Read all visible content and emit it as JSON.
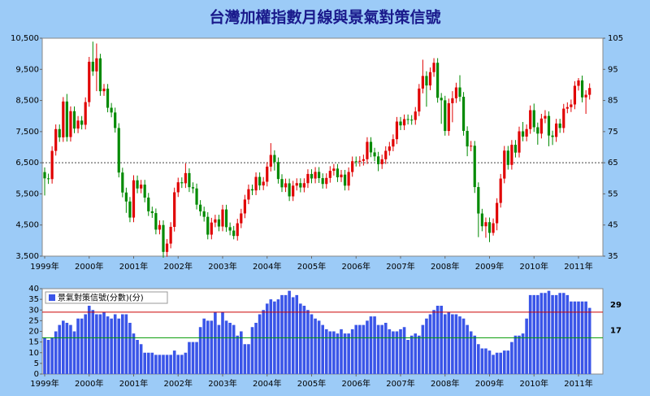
{
  "chart_data": [
    {
      "type": "candlestick",
      "title": "台灣加權指數月線與景氣對策信號",
      "categories": [
        "1999年",
        null,
        null,
        null,
        null,
        null,
        null,
        null,
        null,
        null,
        null,
        null,
        "2000年",
        null,
        null,
        null,
        null,
        null,
        null,
        null,
        null,
        null,
        null,
        null,
        "2001年",
        null,
        null,
        null,
        null,
        null,
        null,
        null,
        null,
        null,
        null,
        null,
        "2002年",
        null,
        null,
        null,
        null,
        null,
        null,
        null,
        null,
        null,
        null,
        null,
        "2003年",
        null,
        null,
        null,
        null,
        null,
        null,
        null,
        null,
        null,
        null,
        null,
        "2004年",
        null,
        null,
        null,
        null,
        null,
        null,
        null,
        null,
        null,
        null,
        null,
        "2005年",
        null,
        null,
        null,
        null,
        null,
        null,
        null,
        null,
        null,
        null,
        null,
        "2006年",
        null,
        null,
        null,
        null,
        null,
        null,
        null,
        null,
        null,
        null,
        null,
        "2007年",
        null,
        null,
        null,
        null,
        null,
        null,
        null,
        null,
        null,
        null,
        null,
        "2008年",
        null,
        null,
        null,
        null,
        null,
        null,
        null,
        null,
        null,
        null,
        null,
        "2009年",
        null,
        null,
        null,
        null,
        null,
        null,
        null,
        null,
        null,
        null,
        null,
        "2010年",
        null,
        null,
        null,
        null,
        null,
        null,
        null,
        null,
        null,
        null,
        null,
        "2011年",
        null,
        null,
        null
      ],
      "open": [
        6200,
        5999,
        5975,
        6881,
        7581,
        7316,
        8467,
        7326,
        8157,
        7598,
        7854,
        7720,
        8448,
        9744,
        9435,
        9854,
        8798,
        8880,
        8266,
        8114,
        7616,
        6185,
        5544,
        5256,
        4739,
        5936,
        5674,
        5797,
        5381,
        4940,
        4883,
        4352,
        4500,
        3636,
        3903,
        4441,
        5551,
        5873,
        5841,
        6167,
        5715,
        5675,
        5153,
        4940,
        4763,
        4191,
        4579,
        4680,
        4452,
        5000,
        4430,
        4321,
        4148,
        4556,
        4872,
        5318,
        5650,
        5611,
        6045,
        5771,
        5890,
        6375,
        6750,
        6522,
        5977,
        5710,
        5839,
        5420,
        5765,
        5845,
        5706,
        5844,
        6140,
        5994,
        6207,
        6006,
        5818,
        6012,
        6241,
        6312,
        6033,
        6119,
        5764,
        6203,
        6548,
        6532,
        6561,
        6613,
        7171,
        6832,
        6704,
        6455,
        6612,
        6883,
        7021,
        7257,
        7823,
        7700,
        7902,
        7884,
        7875,
        8145,
        8883,
        9287,
        8982,
        9411,
        9711,
        8586,
        8506,
        7521,
        8412,
        8572,
        8919,
        8619,
        7523,
        7024,
        7046,
        5719,
        4870,
        4460,
        4591,
        4248,
        4557,
        5210,
        5992,
        6890,
        6432,
        7077,
        6826,
        7509,
        7340,
        7582,
        8188,
        7640,
        7436,
        7920,
        8004,
        7374,
        7329,
        7760,
        7616,
        8238,
        8287,
        8372,
        8972,
        9145,
        8600,
        8683
      ],
      "high": [
        6350,
        6150,
        7030,
        7730,
        7730,
        8610,
        8710,
        8310,
        8310,
        8000,
        8000,
        8600,
        9900,
        10390,
        10330,
        10000,
        9030,
        9030,
        8420,
        8270,
        7770,
        6340,
        5700,
        5400,
        6100,
        6090,
        5950,
        5950,
        5530,
        5090,
        5030,
        4650,
        4650,
        4050,
        4590,
        5700,
        6020,
        6030,
        6480,
        6320,
        5870,
        5830,
        5300,
        5090,
        4910,
        4730,
        4830,
        4830,
        5150,
        5150,
        4580,
        4470,
        4700,
        5020,
        5470,
        5800,
        5800,
        6190,
        6190,
        6040,
        6520,
        7130,
        6900,
        6670,
        6130,
        5990,
        5990,
        5920,
        6000,
        6000,
        6000,
        6290,
        6290,
        6360,
        6360,
        6160,
        6160,
        6390,
        6460,
        6460,
        6270,
        6270,
        6350,
        6700,
        6700,
        6710,
        6760,
        7320,
        7320,
        6980,
        6850,
        6760,
        7030,
        7170,
        7410,
        7970,
        7970,
        8050,
        8050,
        8030,
        8290,
        9030,
        9810,
        9440,
        9560,
        9860,
        9860,
        8740,
        8650,
        8560,
        8800,
        9070,
        9310,
        8770,
        7670,
        7200,
        7200,
        5870,
        5020,
        4740,
        4740,
        4710,
        5360,
        6140,
        7040,
        7040,
        7230,
        7230,
        7660,
        7810,
        7730,
        8340,
        8400,
        7790,
        8070,
        8190,
        8150,
        7530,
        7910,
        7910,
        8390,
        8440,
        8530,
        9120,
        9220,
        9300,
        8830,
        9050
      ],
      "low": [
        5450,
        5820,
        5830,
        6730,
        7170,
        7170,
        7180,
        7180,
        7450,
        7450,
        7570,
        7570,
        8300,
        9290,
        8800,
        8650,
        8650,
        8120,
        7960,
        7470,
        6030,
        5390,
        4890,
        4590,
        4590,
        5520,
        5520,
        5230,
        4790,
        4730,
        4200,
        4200,
        3450,
        3480,
        3750,
        4290,
        5400,
        5690,
        5690,
        5560,
        5520,
        5000,
        4790,
        4610,
        4040,
        4040,
        4430,
        4300,
        4300,
        4280,
        4170,
        4040,
        4000,
        4400,
        4720,
        5170,
        5460,
        5460,
        5620,
        5620,
        5740,
        6220,
        6250,
        5830,
        5560,
        5560,
        5270,
        5270,
        5610,
        5550,
        5550,
        5690,
        5840,
        5840,
        5850,
        5670,
        5670,
        5860,
        6090,
        5880,
        5880,
        5610,
        5610,
        6050,
        6380,
        6380,
        6410,
        6460,
        6680,
        6550,
        6230,
        6300,
        6460,
        6730,
        6870,
        7100,
        7550,
        7550,
        7730,
        7720,
        7720,
        8000,
        8730,
        8300,
        8830,
        9260,
        8430,
        7750,
        7370,
        7370,
        7800,
        8420,
        8470,
        7370,
        6710,
        6870,
        5530,
        4110,
        4300,
        4090,
        3950,
        4160,
        4330,
        5060,
        5840,
        6280,
        6280,
        6670,
        6670,
        7190,
        7190,
        7430,
        7490,
        7080,
        7280,
        7770,
        7030,
        7070,
        7170,
        7460,
        7460,
        8090,
        8130,
        8220,
        8820,
        8440,
        8070,
        8530
      ],
      "close": [
        5999,
        5975,
        6881,
        7581,
        7316,
        8467,
        7326,
        8157,
        7598,
        7854,
        7720,
        8448,
        9744,
        9435,
        9854,
        8798,
        8880,
        8266,
        8114,
        7616,
        6185,
        5544,
        5256,
        4739,
        5936,
        5674,
        5797,
        5381,
        4940,
        4883,
        4352,
        4500,
        3636,
        3903,
        4441,
        5551,
        5873,
        5841,
        6167,
        5715,
        5675,
        5153,
        4940,
        4763,
        4191,
        4579,
        4680,
        4452,
        5000,
        4430,
        4321,
        4148,
        4556,
        4872,
        5318,
        5650,
        5611,
        6045,
        5771,
        5890,
        6375,
        6750,
        6522,
        5977,
        5710,
        5839,
        5420,
        5765,
        5845,
        5706,
        5844,
        6140,
        5994,
        6207,
        6006,
        5818,
        6012,
        6241,
        6312,
        6033,
        6119,
        5764,
        6203,
        6548,
        6532,
        6561,
        6613,
        7171,
        6832,
        6704,
        6455,
        6612,
        6883,
        7021,
        7257,
        7823,
        7700,
        7902,
        7884,
        7875,
        8145,
        8883,
        9287,
        8982,
        9411,
        9711,
        8586,
        8506,
        7521,
        8412,
        8572,
        8919,
        8619,
        7523,
        7024,
        7046,
        5719,
        4870,
        4460,
        4591,
        4248,
        4557,
        5210,
        5992,
        6890,
        6432,
        7077,
        6826,
        7509,
        7340,
        7582,
        8188,
        7640,
        7436,
        7920,
        8004,
        7374,
        7329,
        7760,
        7616,
        8238,
        8287,
        8372,
        8972,
        9145,
        8600,
        8683,
        8900
      ],
      "up_color": "#e00000",
      "down_color": "#008a00",
      "ylim": [
        3500,
        10500
      ],
      "yticks": [
        {
          "value": 3500,
          "label": "3,500"
        },
        {
          "value": 4500,
          "label": "4,500"
        },
        {
          "value": 5500,
          "label": "5,500"
        },
        {
          "value": 6500,
          "label": "6,500"
        },
        {
          "value": 7500,
          "label": "7,500"
        },
        {
          "value": 8500,
          "label": "8,500"
        },
        {
          "value": 9500,
          "label": "9,500"
        },
        {
          "value": 10500,
          "label": "10,500"
        }
      ],
      "y2lim": [
        35,
        105
      ],
      "y2ticks": [
        35,
        45,
        55,
        65,
        75,
        85,
        95,
        105
      ],
      "hline": 6500
    },
    {
      "type": "bar",
      "categories": [
        "1999年",
        null,
        null,
        null,
        null,
        null,
        null,
        null,
        null,
        null,
        null,
        null,
        "2000年",
        null,
        null,
        null,
        null,
        null,
        null,
        null,
        null,
        null,
        null,
        null,
        "2001年",
        null,
        null,
        null,
        null,
        null,
        null,
        null,
        null,
        null,
        null,
        null,
        "2002年",
        null,
        null,
        null,
        null,
        null,
        null,
        null,
        null,
        null,
        null,
        null,
        "2003年",
        null,
        null,
        null,
        null,
        null,
        null,
        null,
        null,
        null,
        null,
        null,
        "2004年",
        null,
        null,
        null,
        null,
        null,
        null,
        null,
        null,
        null,
        null,
        null,
        "2005年",
        null,
        null,
        null,
        null,
        null,
        null,
        null,
        null,
        null,
        null,
        null,
        "2006年",
        null,
        null,
        null,
        null,
        null,
        null,
        null,
        null,
        null,
        null,
        null,
        "2007年",
        null,
        null,
        null,
        null,
        null,
        null,
        null,
        null,
        null,
        null,
        null,
        "2008年",
        null,
        null,
        null,
        null,
        null,
        null,
        null,
        null,
        null,
        null,
        null,
        "2009年",
        null,
        null,
        null,
        null,
        null,
        null,
        null,
        null,
        null,
        null,
        null,
        "2010年",
        null,
        null,
        null,
        null,
        null,
        null,
        null,
        null,
        null,
        null,
        null,
        "2011年",
        null,
        null,
        null
      ],
      "series": [
        {
          "name": "景氣對策信號(分數)(分)",
          "color": "#3a55e8",
          "values": [
            17,
            16,
            17,
            20,
            23,
            25,
            24,
            23,
            20,
            26,
            26,
            28,
            32,
            30,
            28,
            28,
            29,
            27,
            26,
            28,
            26,
            28,
            28,
            24,
            19,
            16,
            14,
            10,
            10,
            10,
            9,
            9,
            9,
            9,
            9,
            11,
            9,
            9,
            10,
            15,
            15,
            15,
            22,
            26,
            25,
            25,
            29,
            23,
            29,
            25,
            24,
            23,
            18,
            20,
            14,
            14,
            22,
            24,
            28,
            30,
            33,
            35,
            34,
            35,
            37,
            37,
            39,
            36,
            37,
            33,
            32,
            30,
            28,
            26,
            25,
            23,
            21,
            20,
            20,
            19,
            21,
            19,
            19,
            21,
            23,
            23,
            23,
            25,
            27,
            27,
            23,
            23,
            24,
            21,
            20,
            20,
            21,
            22,
            16,
            18,
            19,
            18,
            23,
            26,
            28,
            30,
            32,
            32,
            28,
            29,
            28,
            28,
            27,
            26,
            23,
            20,
            18,
            14,
            12,
            12,
            11,
            9,
            10,
            10,
            11,
            11,
            15,
            18,
            18,
            19,
            26,
            37,
            37,
            37,
            38,
            38,
            39,
            37,
            37,
            38,
            38,
            37,
            34,
            34,
            34,
            34,
            34,
            31
          ]
        }
      ],
      "ylim": [
        0,
        40
      ],
      "yticks": [
        0,
        5,
        10,
        15,
        20,
        25,
        30,
        35,
        40
      ],
      "hlines": [
        {
          "value": 29,
          "color": "#cc0000"
        },
        {
          "value": 17,
          "color": "#009900"
        }
      ]
    }
  ]
}
